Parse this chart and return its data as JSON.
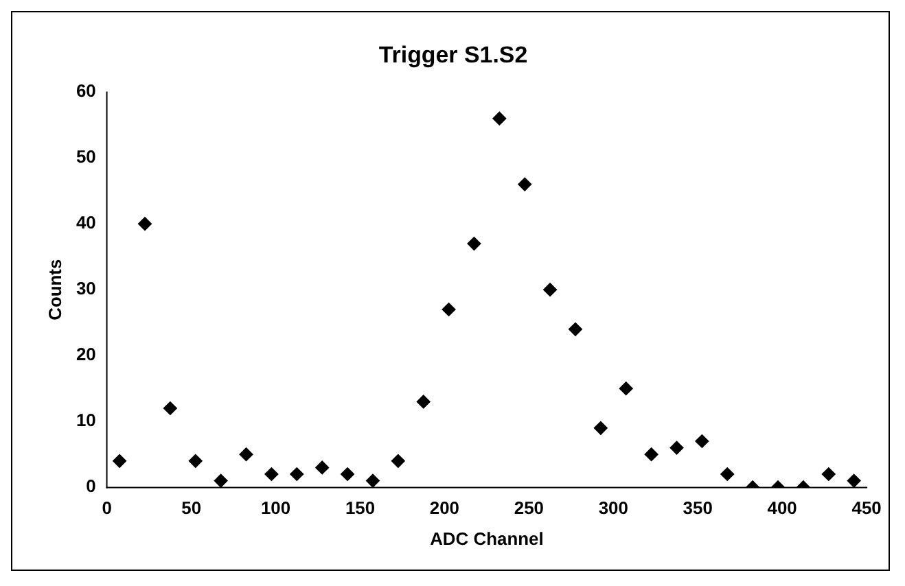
{
  "chart_data": {
    "type": "scatter",
    "title": "Trigger S1.S2",
    "xlabel": "ADC Channel",
    "ylabel": "Counts",
    "x": [
      7.5,
      22.5,
      37.5,
      52.5,
      67.5,
      82.5,
      97.5,
      112.5,
      127.5,
      142.5,
      157.5,
      172.5,
      187.5,
      202.5,
      217.5,
      232.5,
      247.5,
      262.5,
      277.5,
      292.5,
      307.5,
      322.5,
      337.5,
      352.5,
      367.5,
      382.5,
      397.5,
      412.5,
      427.5,
      442.5
    ],
    "values": [
      4,
      40,
      12,
      4,
      1,
      5,
      2,
      2,
      3,
      2,
      1,
      4,
      13,
      27,
      37,
      56,
      46,
      30,
      24,
      9,
      15,
      5,
      6,
      7,
      2,
      0,
      0,
      0,
      2,
      1
    ],
    "color": "#000000",
    "marker": "diamond",
    "xlim": [
      0,
      450
    ],
    "xticks": [
      0,
      50,
      100,
      150,
      200,
      250,
      300,
      350,
      400,
      450
    ],
    "ylim": [
      0,
      60
    ],
    "yticks": [
      0,
      10,
      20,
      30,
      40,
      50,
      60
    ],
    "grid": false,
    "legend": false
  }
}
